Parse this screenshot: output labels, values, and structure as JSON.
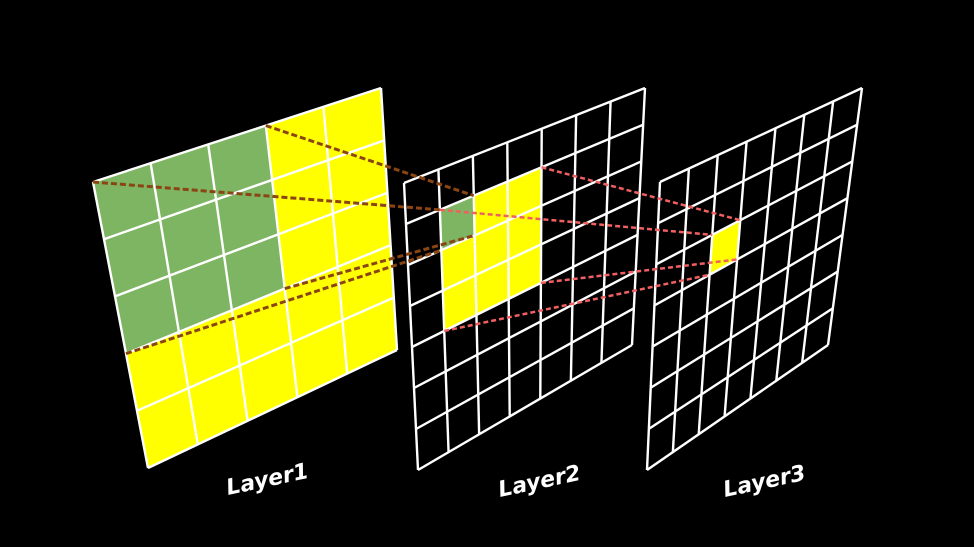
{
  "diagram": {
    "description_free": true,
    "colors": {
      "background": "#000000",
      "grid_line": "#ffffff",
      "highlight": "#ffff00",
      "receptive_field": "#7db562",
      "projection_l1_l2": "#8b4513",
      "projection_l2_l3": "#f06060"
    },
    "layers": [
      {
        "label": "Layer1",
        "grid_size": 5,
        "highlight_region": "all",
        "receptive_field_region": {
          "rows": [
            0,
            2
          ],
          "cols": [
            0,
            2
          ]
        }
      },
      {
        "label": "Layer2",
        "grid_size": 7,
        "highlight_region": {
          "rows": [
            1,
            3
          ],
          "cols": [
            1,
            3
          ]
        },
        "receptive_field_region": {
          "rows": [
            1,
            1
          ],
          "cols": [
            1,
            1
          ]
        }
      },
      {
        "label": "Layer3",
        "grid_size": 7,
        "highlight_region": {
          "rows": [
            2,
            2
          ],
          "cols": [
            2,
            2
          ]
        },
        "receptive_field_region": null
      }
    ]
  }
}
